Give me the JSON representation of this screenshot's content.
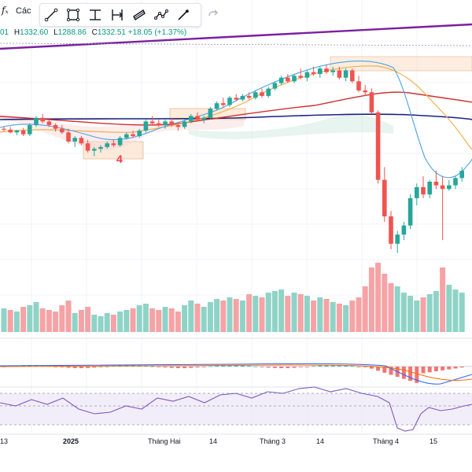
{
  "header": {
    "fx_symbol": "fₓ",
    "indicator_label": "Các",
    "ohlc_open_fragment": "01",
    "ohlc_high_label": "H",
    "ohlc_high": "1332.60",
    "ohlc_low_label": "L",
    "ohlc_low": "1288.86",
    "ohlc_close_label": "C",
    "ohlc_close": "1332.51",
    "ohlc_change": "+18.05 (+1.37%)"
  },
  "toolbar": {
    "tools": [
      "trend-line",
      "rectangle",
      "fib-retracement",
      "date-range",
      "parallel-channel",
      "path",
      "brush"
    ],
    "redo_icon": "redo-icon"
  },
  "annotation_label": "4",
  "x_axis_labels": [
    {
      "text": "13",
      "bold": false
    },
    {
      "text": "2025",
      "bold": true
    },
    {
      "text": "Tháng Hai",
      "bold": false
    },
    {
      "text": "14",
      "bold": false
    },
    {
      "text": "Tháng 3",
      "bold": false
    },
    {
      "text": "14",
      "bold": false
    },
    {
      "text": "Tháng 4",
      "bold": false
    },
    {
      "text": "15",
      "bold": false
    }
  ],
  "colors": {
    "up": "#26a69a",
    "down": "#ef5350",
    "volume_up": "#8fd3c7",
    "volume_down": "#f5a3a6",
    "trendline": "#7b1fa2",
    "ma_fast": "#4aa3df",
    "ma_mid": "#f0b04a",
    "ma_slow": "#d32f2f",
    "ma_long": "#1a237e",
    "rsi": "#7e57c2",
    "zone": "#fbe2cd"
  },
  "chart_data": {
    "type": "candlestick",
    "candles": [
      [
        1252,
        1255,
        1249,
        1251
      ],
      [
        1251,
        1254,
        1247,
        1248
      ],
      [
        1248,
        1251,
        1245,
        1250
      ],
      [
        1250,
        1253,
        1244,
        1246
      ],
      [
        1246,
        1258,
        1244,
        1256
      ],
      [
        1256,
        1266,
        1254,
        1264
      ],
      [
        1264,
        1268,
        1258,
        1260
      ],
      [
        1260,
        1262,
        1254,
        1256
      ],
      [
        1256,
        1258,
        1249,
        1252
      ],
      [
        1252,
        1256,
        1246,
        1248
      ],
      [
        1248,
        1252,
        1236,
        1238
      ],
      [
        1238,
        1244,
        1232,
        1242
      ],
      [
        1242,
        1244,
        1234,
        1236
      ],
      [
        1236,
        1240,
        1226,
        1228
      ],
      [
        1228,
        1232,
        1222,
        1230
      ],
      [
        1230,
        1234,
        1226,
        1232
      ],
      [
        1232,
        1238,
        1230,
        1236
      ],
      [
        1236,
        1240,
        1232,
        1234
      ],
      [
        1234,
        1244,
        1232,
        1242
      ],
      [
        1242,
        1248,
        1240,
        1246
      ],
      [
        1246,
        1250,
        1242,
        1244
      ],
      [
        1244,
        1252,
        1242,
        1250
      ],
      [
        1250,
        1262,
        1248,
        1260
      ],
      [
        1260,
        1266,
        1256,
        1258
      ],
      [
        1258,
        1262,
        1254,
        1256
      ],
      [
        1256,
        1262,
        1252,
        1260
      ],
      [
        1260,
        1264,
        1254,
        1256
      ],
      [
        1256,
        1258,
        1250,
        1254
      ],
      [
        1254,
        1262,
        1252,
        1260
      ],
      [
        1260,
        1268,
        1258,
        1266
      ],
      [
        1266,
        1270,
        1260,
        1262
      ],
      [
        1262,
        1266,
        1258,
        1264
      ],
      [
        1264,
        1276,
        1262,
        1274
      ],
      [
        1274,
        1282,
        1272,
        1280
      ],
      [
        1280,
        1286,
        1276,
        1278
      ],
      [
        1278,
        1288,
        1276,
        1286
      ],
      [
        1286,
        1290,
        1282,
        1284
      ],
      [
        1284,
        1290,
        1282,
        1288
      ],
      [
        1288,
        1292,
        1284,
        1286
      ],
      [
        1286,
        1294,
        1284,
        1292
      ],
      [
        1292,
        1296,
        1286,
        1288
      ],
      [
        1288,
        1298,
        1286,
        1296
      ],
      [
        1296,
        1304,
        1294,
        1302
      ],
      [
        1302,
        1310,
        1300,
        1308
      ],
      [
        1308,
        1312,
        1302,
        1304
      ],
      [
        1304,
        1312,
        1302,
        1310
      ],
      [
        1310,
        1318,
        1306,
        1308
      ],
      [
        1308,
        1316,
        1304,
        1314
      ],
      [
        1314,
        1320,
        1310,
        1312
      ],
      [
        1312,
        1320,
        1308,
        1318
      ],
      [
        1318,
        1322,
        1312,
        1314
      ],
      [
        1314,
        1320,
        1310,
        1316
      ],
      [
        1316,
        1320,
        1306,
        1308
      ],
      [
        1308,
        1318,
        1304,
        1316
      ],
      [
        1316,
        1318,
        1302,
        1304
      ],
      [
        1304,
        1310,
        1292,
        1294
      ],
      [
        1294,
        1300,
        1288,
        1292
      ],
      [
        1292,
        1296,
        1268,
        1270
      ],
      [
        1270,
        1272,
        1192,
        1196
      ],
      [
        1196,
        1210,
        1150,
        1156
      ],
      [
        1156,
        1162,
        1120,
        1126
      ],
      [
        1126,
        1140,
        1116,
        1136
      ],
      [
        1136,
        1150,
        1130,
        1146
      ],
      [
        1146,
        1180,
        1142,
        1176
      ],
      [
        1176,
        1192,
        1168,
        1188
      ],
      [
        1188,
        1200,
        1176,
        1180
      ],
      [
        1180,
        1196,
        1176,
        1194
      ],
      [
        1194,
        1206,
        1186,
        1190
      ],
      [
        1190,
        1200,
        1130,
        1186
      ],
      [
        1186,
        1196,
        1184,
        1190
      ],
      [
        1190,
        1200,
        1186,
        1198
      ],
      [
        1198,
        1210,
        1194,
        1206
      ]
    ],
    "volumes": [
      [
        30,
        0
      ],
      [
        28,
        1
      ],
      [
        26,
        0
      ],
      [
        32,
        1
      ],
      [
        34,
        0
      ],
      [
        38,
        0
      ],
      [
        30,
        1
      ],
      [
        28,
        1
      ],
      [
        26,
        1
      ],
      [
        34,
        1
      ],
      [
        40,
        1
      ],
      [
        24,
        0
      ],
      [
        28,
        1
      ],
      [
        32,
        1
      ],
      [
        22,
        0
      ],
      [
        20,
        0
      ],
      [
        24,
        0
      ],
      [
        22,
        1
      ],
      [
        26,
        0
      ],
      [
        28,
        0
      ],
      [
        30,
        1
      ],
      [
        34,
        0
      ],
      [
        36,
        0
      ],
      [
        30,
        1
      ],
      [
        28,
        1
      ],
      [
        32,
        0
      ],
      [
        30,
        1
      ],
      [
        26,
        1
      ],
      [
        34,
        0
      ],
      [
        40,
        0
      ],
      [
        36,
        1
      ],
      [
        32,
        0
      ],
      [
        38,
        0
      ],
      [
        42,
        0
      ],
      [
        40,
        1
      ],
      [
        44,
        0
      ],
      [
        42,
        1
      ],
      [
        40,
        0
      ],
      [
        48,
        1
      ],
      [
        46,
        0
      ],
      [
        44,
        1
      ],
      [
        50,
        0
      ],
      [
        52,
        0
      ],
      [
        54,
        0
      ],
      [
        46,
        1
      ],
      [
        50,
        0
      ],
      [
        48,
        1
      ],
      [
        46,
        0
      ],
      [
        40,
        1
      ],
      [
        44,
        0
      ],
      [
        42,
        1
      ],
      [
        38,
        0
      ],
      [
        36,
        1
      ],
      [
        34,
        0
      ],
      [
        40,
        1
      ],
      [
        44,
        1
      ],
      [
        58,
        1
      ],
      [
        82,
        1
      ],
      [
        88,
        1
      ],
      [
        74,
        1
      ],
      [
        62,
        1
      ],
      [
        58,
        0
      ],
      [
        50,
        0
      ],
      [
        46,
        0
      ],
      [
        40,
        0
      ],
      [
        44,
        1
      ],
      [
        48,
        0
      ],
      [
        52,
        0
      ],
      [
        82,
        1
      ],
      [
        60,
        0
      ],
      [
        54,
        0
      ],
      [
        50,
        0
      ]
    ],
    "y_range": [
      1100,
      1350
    ],
    "grid": true
  }
}
